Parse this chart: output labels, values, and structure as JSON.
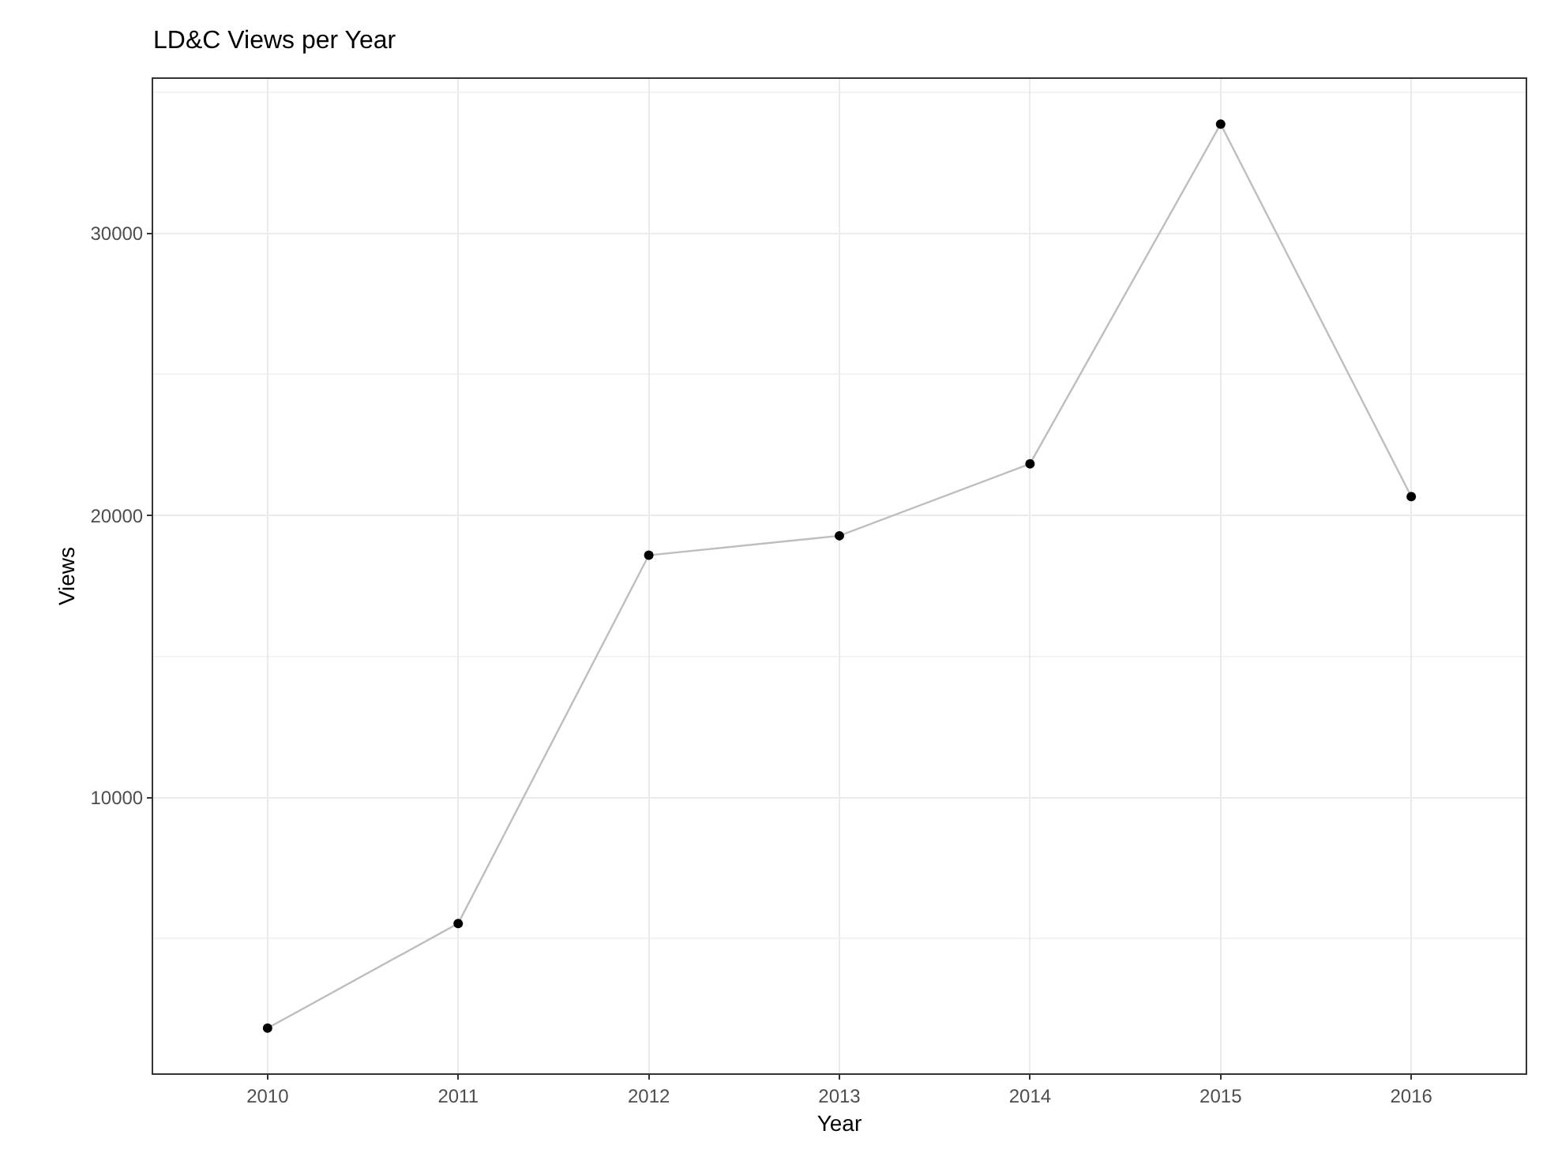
{
  "chart_data": {
    "type": "line",
    "title": "LD&C Views per Year",
    "xlabel": "Year",
    "ylabel": "Views",
    "categories": [
      "2010",
      "2011",
      "2012",
      "2013",
      "2014",
      "2015",
      "2016"
    ],
    "series": [
      {
        "color": "#bebebe",
        "marker": "none",
        "values": [
          1830,
          5540,
          18590,
          19280,
          21830,
          33870,
          20670
        ]
      },
      {
        "type": "scatter",
        "color": "#000000",
        "marker": "circle",
        "values": [
          1830,
          5540,
          18590,
          19280,
          21830,
          33870,
          20670
        ]
      }
    ],
    "ylim": [
      230,
      35470
    ],
    "yticks": [
      10000,
      20000,
      30000
    ],
    "grid": true,
    "legend": false
  }
}
